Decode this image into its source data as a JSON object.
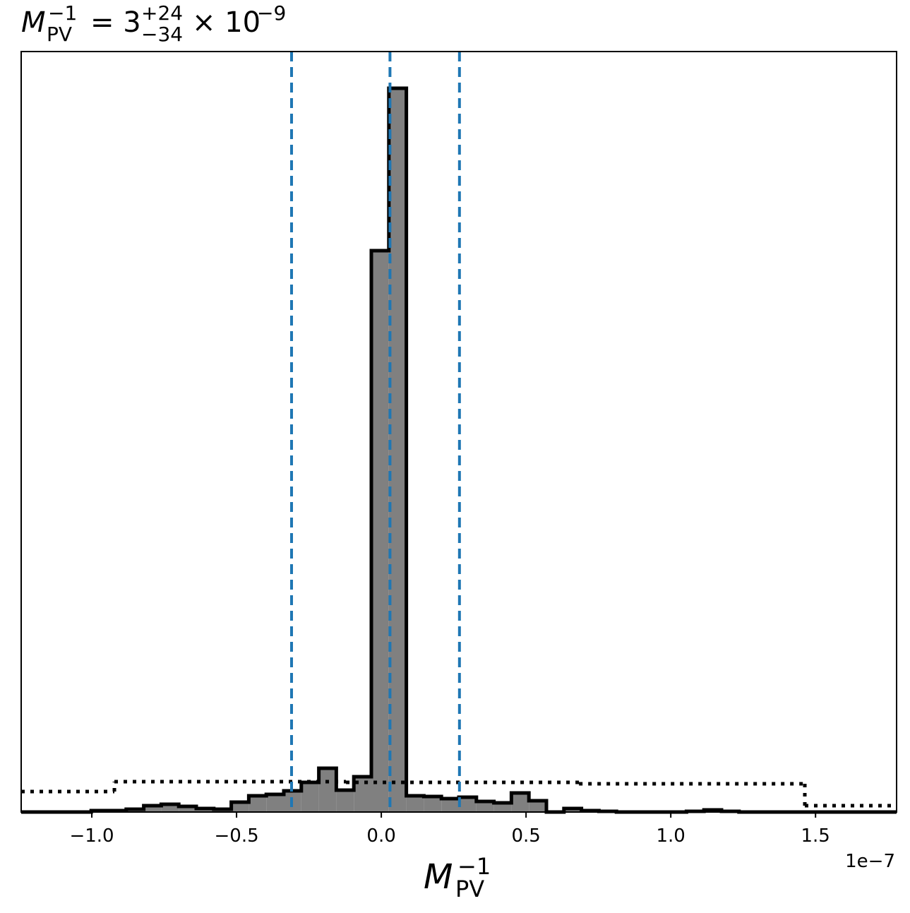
{
  "chart_data": {
    "type": "histogram",
    "title": {
      "symbol": "M",
      "sub": "PV",
      "sup": "−1",
      "eq": "= 3",
      "plus": "+24",
      "minus": "−34",
      "times": "× 10",
      "exp": "−9"
    },
    "x_label": {
      "symbol": "M",
      "sub": "PV",
      "sup": "−1"
    },
    "x_offset_label": "1e−7",
    "xlim": [
      -1.244,
      1.78
    ],
    "ylim": [
      0,
      1077
    ],
    "xticks": [
      {
        "value": -1,
        "label": "−1.0"
      },
      {
        "value": -0.5,
        "label": "−0.5"
      },
      {
        "value": 0,
        "label": "0.0"
      },
      {
        "value": 0.5,
        "label": "0.5"
      },
      {
        "value": 1,
        "label": "1.0"
      },
      {
        "value": 1.5,
        "label": "1.5"
      }
    ],
    "series": [
      {
        "style": "filled",
        "color": "#808080",
        "edgecolor": "#000000",
        "bins": [
          -1.244,
          -1.1835,
          -1.123,
          -1.0626,
          -1.0021,
          -0.9416,
          -0.8811,
          -0.8206,
          -0.7602,
          -0.6997,
          -0.6392,
          -0.5787,
          -0.5182,
          -0.4578,
          -0.3973,
          -0.3368,
          -0.2763,
          -0.2158,
          -0.1554,
          -0.0949,
          -0.0344,
          0.0261,
          0.0866,
          0.147,
          0.2075,
          0.268,
          0.3285,
          0.389,
          0.4494,
          0.5099,
          0.5704,
          0.6309,
          0.6914,
          0.7518,
          0.8123,
          0.8728,
          0.9333,
          0.9938,
          1.0542,
          1.1147,
          1.1752,
          1.2357,
          1.2962,
          1.3566,
          1.4171,
          1.4776,
          1.5381,
          1.5986,
          1.659,
          1.7195,
          1.78
        ],
        "values": [
          0,
          0,
          0,
          0,
          2,
          2,
          4,
          9,
          11,
          8,
          5,
          4,
          14,
          23,
          25,
          30,
          42,
          62,
          31,
          50,
          795,
          1025,
          23,
          22,
          19,
          21,
          15,
          13,
          27,
          16,
          0,
          5,
          2,
          1,
          0,
          0,
          0,
          0,
          1,
          3,
          1,
          0,
          0,
          0,
          0,
          0,
          0,
          0,
          0,
          0
        ]
      },
      {
        "style": "dotted",
        "color": "#000000",
        "bins": [
          -1.244,
          -0.922,
          -0.122,
          0.683,
          1.463,
          1.78
        ],
        "values": [
          29,
          43,
          42,
          40,
          9
        ]
      }
    ],
    "vlines": {
      "values": [
        -0.31,
        0.03,
        0.27
      ],
      "color": "#1f77b4"
    }
  }
}
